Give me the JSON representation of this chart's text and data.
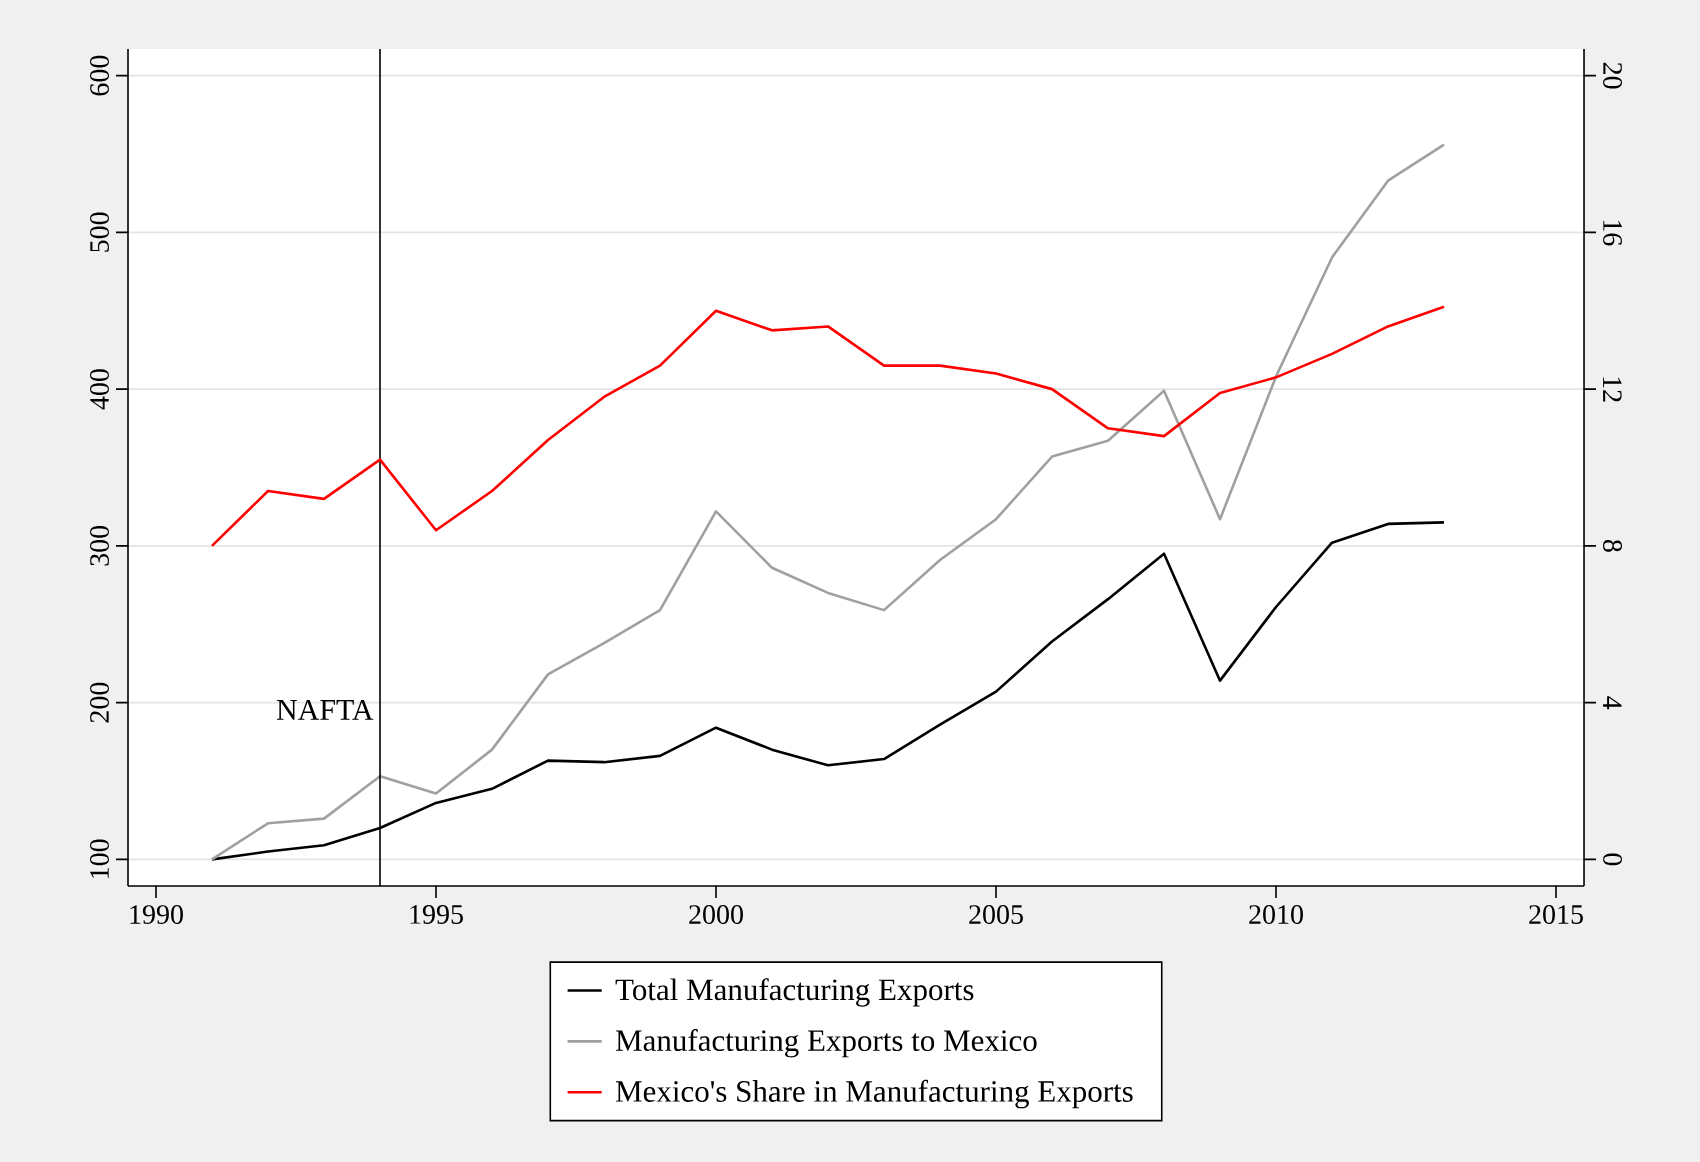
{
  "chart_data": {
    "type": "line",
    "x": [
      1991,
      1992,
      1993,
      1994,
      1995,
      1996,
      1997,
      1998,
      1999,
      2000,
      2001,
      2002,
      2003,
      2004,
      2005,
      2006,
      2007,
      2008,
      2009,
      2010,
      2011,
      2012,
      2013
    ],
    "series": [
      {
        "name": "Total Manufacturing Exports",
        "color": "#000000",
        "values": [
          100,
          105,
          109,
          120,
          136,
          145,
          163,
          162,
          166,
          184,
          170,
          160,
          164,
          186,
          207,
          239,
          266,
          295,
          214,
          261,
          302,
          314,
          315
        ]
      },
      {
        "name": "Manufacturing Exports to Mexico",
        "color": "#a0a0a0",
        "values": [
          100,
          123,
          126,
          153,
          142,
          170,
          218,
          238,
          259,
          322,
          286,
          270,
          259,
          291,
          317,
          357,
          367,
          399,
          317,
          408,
          484,
          533,
          556
        ]
      },
      {
        "name": "Mexico's Share in Manufacturing Exports",
        "color": "#ff0000",
        "axis": "y2",
        "values": [
          8.0,
          9.4,
          9.2,
          10.2,
          8.4,
          9.4,
          10.7,
          11.8,
          12.6,
          14.0,
          13.5,
          13.6,
          12.6,
          12.6,
          12.4,
          12.0,
          11.0,
          10.8,
          11.9,
          12.3,
          12.9,
          13.6,
          14.1
        ]
      }
    ],
    "xlim": [
      1989.5,
      2015.5
    ],
    "xticks": [
      1990,
      1995,
      2000,
      2005,
      2010,
      2015
    ],
    "ylim": [
      83,
      617
    ],
    "yticks": [
      100,
      200,
      300,
      400,
      500,
      600
    ],
    "y2lim": [
      -0.68,
      20.68
    ],
    "y2ticks": [
      0,
      4,
      8,
      12,
      16,
      20
    ],
    "ref_lines": [
      {
        "axis": "x",
        "value": 1994,
        "label": "NAFTA",
        "color": "#000000"
      }
    ],
    "grid": "y",
    "legend": "bottom",
    "line_style": "solid",
    "marker": "none"
  }
}
